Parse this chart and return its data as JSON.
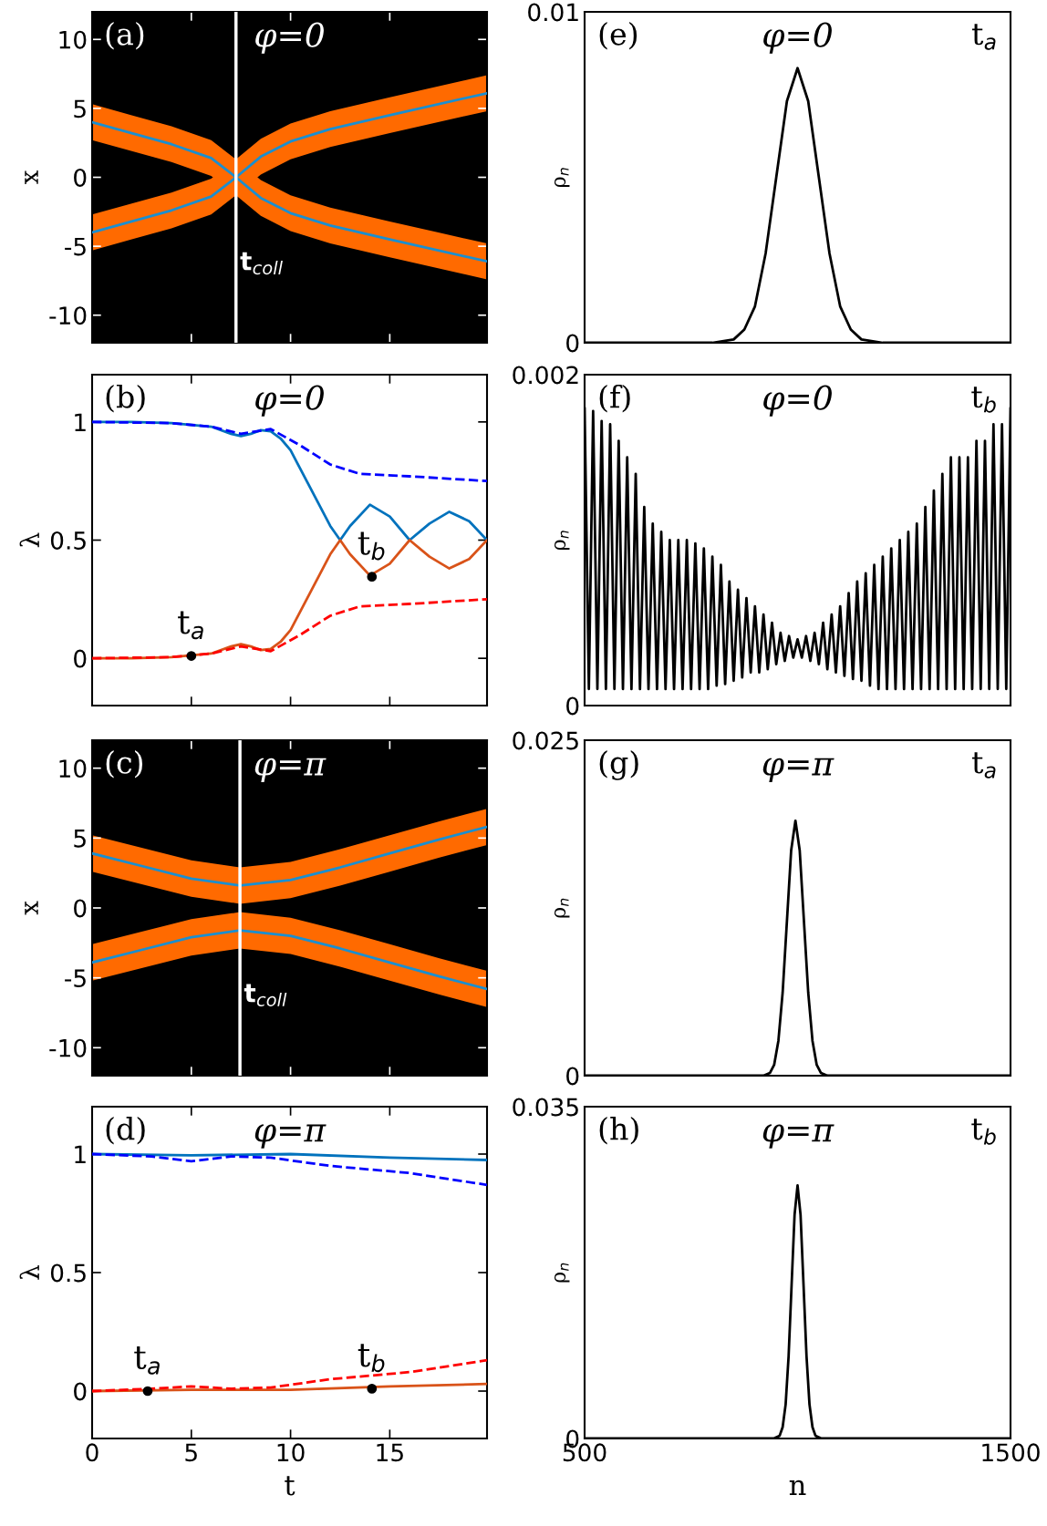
{
  "chart_data": [
    {
      "type": "line",
      "title": "φ=0",
      "ylabel": "x",
      "annotations": [
        "(a)"
      ],
      "xlim": [
        0,
        19.9
      ],
      "xticks": [
        0,
        5,
        10,
        15
      ],
      "ylim": [
        -12,
        12
      ],
      "yticks": [
        -10,
        -5,
        0,
        5,
        10
      ],
      "tick_labels": "y",
      "ref_lines": [
        {
          "axis": "x",
          "value": 7.25,
          "label": "t$_{coll}$",
          "color": "#ffffff"
        }
      ],
      "series": [
        {
          "color": "#1a8fd0",
          "x": [
            0,
            2,
            4,
            6,
            7.25,
            8.5,
            10,
            12,
            15,
            19.9
          ],
          "values": [
            4.0,
            3.2,
            2.4,
            1.4,
            0,
            -1.5,
            -2.6,
            -3.5,
            -4.5,
            -6.1
          ],
          "lower": [
            2.7,
            1.9,
            1.1,
            0.1,
            -1.3,
            -2.8,
            -3.9,
            -4.8,
            -5.8,
            -7.4
          ],
          "upper": [
            5.3,
            4.5,
            3.7,
            2.7,
            1.3,
            -0.2,
            -1.3,
            -2.2,
            -3.2,
            -4.8
          ]
        },
        {
          "color": "#1a8fd0",
          "x": [
            0,
            2,
            4,
            6,
            7.25,
            8.5,
            10,
            12,
            15,
            19.9
          ],
          "values": [
            -4.0,
            -3.2,
            -2.4,
            -1.4,
            0,
            1.5,
            2.6,
            3.5,
            4.5,
            6.1
          ],
          "lower": [
            -5.3,
            -4.5,
            -3.7,
            -2.7,
            -1.3,
            0.2,
            1.3,
            2.2,
            3.2,
            4.8
          ],
          "upper": [
            -2.7,
            -1.9,
            -1.1,
            -0.1,
            1.3,
            2.8,
            3.9,
            4.8,
            5.8,
            7.4
          ]
        }
      ]
    },
    {
      "type": "line",
      "title": "φ=0",
      "ylabel": "ρ$_{n}$",
      "annotations": [
        "(e)",
        "t$_{a}$"
      ],
      "xlim": [
        500,
        1500
      ],
      "xticks": [
        500,
        1500
      ],
      "ylim": [
        0,
        0.01
      ],
      "yticks": [
        0,
        0.01
      ],
      "tick_labels": "y",
      "series": [
        {
          "color": "#000000",
          "x": [
            500,
            800,
            850,
            875,
            900,
            925,
            950,
            975,
            1000,
            1025,
            1050,
            1075,
            1100,
            1125,
            1150,
            1200,
            1500
          ],
          "values": [
            0,
            0,
            0.0001,
            0.0004,
            0.0011,
            0.0027,
            0.005,
            0.0073,
            0.0083,
            0.0073,
            0.005,
            0.0027,
            0.0011,
            0.0004,
            0.0001,
            0,
            0
          ]
        }
      ]
    },
    {
      "type": "line",
      "title": "φ=0",
      "ylabel": "λ",
      "annotations": [
        "(b)",
        {
          "text": "t$_{a}$",
          "x": 5,
          "y": 0.01
        },
        {
          "text": "t$_{b}$",
          "x": 14.1,
          "y": 0.345
        }
      ],
      "xlim": [
        0,
        19.9
      ],
      "xticks": [
        0,
        5,
        10,
        15
      ],
      "ylim": [
        -0.2,
        1.2
      ],
      "yticks": [
        0,
        0.5,
        1
      ],
      "tick_labels": "y",
      "series": [
        {
          "color": "#0072bd",
          "x": [
            0,
            2,
            4,
            6,
            7,
            7.5,
            8,
            8.5,
            9,
            9.5,
            10,
            11,
            12,
            12.5,
            13,
            14,
            15,
            16,
            17,
            18,
            19,
            19.9
          ],
          "values": [
            1,
            1,
            0.995,
            0.98,
            0.95,
            0.94,
            0.95,
            0.965,
            0.96,
            0.93,
            0.88,
            0.72,
            0.56,
            0.5,
            0.56,
            0.65,
            0.6,
            0.5,
            0.57,
            0.62,
            0.58,
            0.5
          ]
        },
        {
          "color": "#d95319",
          "x": [
            0,
            2,
            4,
            6,
            7,
            7.5,
            8,
            8.5,
            9,
            9.5,
            10,
            11,
            12,
            12.5,
            13,
            14,
            15,
            16,
            17,
            18,
            19,
            19.9
          ],
          "values": [
            0,
            0,
            0.005,
            0.02,
            0.05,
            0.06,
            0.05,
            0.035,
            0.04,
            0.07,
            0.12,
            0.28,
            0.44,
            0.5,
            0.44,
            0.35,
            0.4,
            0.5,
            0.43,
            0.38,
            0.42,
            0.5
          ]
        },
        {
          "color": "#0000ff",
          "line_style": "dashed",
          "x": [
            0,
            4,
            6,
            7.5,
            9,
            10.5,
            12,
            13.5,
            16,
            19.9
          ],
          "values": [
            1,
            0.995,
            0.98,
            0.95,
            0.97,
            0.9,
            0.82,
            0.78,
            0.77,
            0.75
          ]
        },
        {
          "color": "#ff0000",
          "line_style": "dashed",
          "x": [
            0,
            4,
            6,
            7.5,
            9,
            10.5,
            12,
            13.5,
            16,
            19.9
          ],
          "values": [
            0,
            0.005,
            0.02,
            0.05,
            0.03,
            0.1,
            0.18,
            0.22,
            0.23,
            0.25
          ]
        },
        {
          "type": "scatter",
          "color": "#000000",
          "x": [
            5,
            14.1
          ],
          "values": [
            0.01,
            0.345
          ]
        }
      ]
    },
    {
      "type": "line",
      "title": "φ=0",
      "ylabel": "ρ$_{n}$",
      "annotations": [
        "(f)",
        "t$_{b}$"
      ],
      "xlim": [
        500,
        1500
      ],
      "xticks": [
        500,
        1500
      ],
      "ylim": [
        0,
        0.002
      ],
      "yticks": [
        0,
        0.002
      ],
      "tick_labels": "y",
      "series": [
        {
          "color": "#000000",
          "x": [
            500,
            510,
            520,
            530,
            540,
            550,
            560,
            570,
            580,
            590,
            600,
            610,
            620,
            630,
            640,
            650,
            660,
            670,
            680,
            690,
            700,
            710,
            720,
            730,
            740,
            750,
            760,
            770,
            780,
            790,
            800,
            810,
            820,
            830,
            840,
            850,
            860,
            870,
            880,
            890,
            900,
            910,
            920,
            930,
            940,
            950,
            960,
            970,
            980,
            990,
            1000,
            1010,
            1020,
            1030,
            1040,
            1050,
            1060,
            1070,
            1080,
            1090,
            1100,
            1110,
            1120,
            1130,
            1140,
            1150,
            1160,
            1170,
            1180,
            1190,
            1200,
            1210,
            1220,
            1230,
            1240,
            1250,
            1260,
            1270,
            1280,
            1290,
            1300,
            1310,
            1320,
            1330,
            1340,
            1350,
            1360,
            1370,
            1380,
            1390,
            1400,
            1410,
            1420,
            1430,
            1440,
            1450,
            1460,
            1470,
            1480,
            1490,
            1500
          ],
          "values": [
            0.0018,
            0.0001,
            0.00178,
            0.0001,
            0.00172,
            0.0001,
            0.0017,
            0.0001,
            0.0016,
            0.0001,
            0.0015,
            0.0001,
            0.0014,
            0.0001,
            0.0012,
            0.0001,
            0.0011,
            0.0001,
            0.00105,
            0.0001,
            0.001,
            0.0001,
            0.001,
            0.0001,
            0.001,
            0.0001,
            0.00098,
            0.0001,
            0.00095,
            0.0001,
            0.0009,
            0.00012,
            0.00085,
            0.00013,
            0.00075,
            0.00015,
            0.0007,
            0.00017,
            0.00065,
            0.0002,
            0.0006,
            0.0002,
            0.00055,
            0.00022,
            0.0005,
            0.00025,
            0.00044,
            0.00027,
            0.00042,
            0.00029,
            0.0004,
            0.00029,
            0.00042,
            0.00027,
            0.00044,
            0.00025,
            0.0005,
            0.00022,
            0.00055,
            0.0002,
            0.0006,
            0.00018,
            0.00068,
            0.00016,
            0.00075,
            0.00015,
            0.0008,
            0.00012,
            0.00085,
            0.0001,
            0.0009,
            0.0001,
            0.00095,
            0.0001,
            0.001,
            0.0001,
            0.00105,
            0.0001,
            0.0011,
            0.0001,
            0.0012,
            0.0001,
            0.0013,
            0.0001,
            0.0014,
            0.0001,
            0.0015,
            0.0001,
            0.0015,
            0.0001,
            0.0015,
            0.0001,
            0.0016,
            0.0001,
            0.0016,
            0.0001,
            0.0017,
            0.0001,
            0.0017,
            0.0001,
            0.0018
          ]
        }
      ]
    },
    {
      "type": "line",
      "title": "φ=π",
      "ylabel": "x",
      "annotations": [
        "(c)"
      ],
      "xlim": [
        0,
        19.9
      ],
      "xticks": [
        0,
        5,
        10,
        15
      ],
      "ylim": [
        -12,
        12
      ],
      "yticks": [
        -10,
        -5,
        0,
        5,
        10
      ],
      "tick_labels": "y",
      "ref_lines": [
        {
          "axis": "x",
          "value": 7.45,
          "label": "t$_{coll}$",
          "color": "#ffffff"
        }
      ],
      "series": [
        {
          "color": "#1a8fd0",
          "x": [
            0,
            2.5,
            5,
            7.45,
            10,
            12.5,
            15,
            17.5,
            19.9
          ],
          "values": [
            3.9,
            3.0,
            2.1,
            1.6,
            2.0,
            2.9,
            3.9,
            4.9,
            5.8
          ],
          "lower": [
            2.6,
            1.7,
            0.8,
            0.3,
            0.7,
            1.6,
            2.6,
            3.6,
            4.5
          ],
          "upper": [
            5.2,
            4.3,
            3.4,
            2.9,
            3.3,
            4.2,
            5.2,
            6.2,
            7.1
          ]
        },
        {
          "color": "#1a8fd0",
          "x": [
            0,
            2.5,
            5,
            7.45,
            10,
            12.5,
            15,
            17.5,
            19.9
          ],
          "values": [
            -3.9,
            -3.0,
            -2.1,
            -1.6,
            -2.0,
            -2.9,
            -3.9,
            -4.9,
            -5.8
          ],
          "lower": [
            -5.2,
            -4.3,
            -3.4,
            -2.9,
            -3.3,
            -4.2,
            -5.2,
            -6.2,
            -7.1
          ],
          "upper": [
            -2.6,
            -1.7,
            -0.8,
            -0.3,
            -0.7,
            -1.6,
            -2.6,
            -3.6,
            -4.5
          ]
        }
      ]
    },
    {
      "type": "line",
      "title": "φ=π",
      "ylabel": "ρ$_{n}$",
      "annotations": [
        "(g)",
        "t$_{a}$"
      ],
      "xlim": [
        500,
        1500
      ],
      "xticks": [
        500,
        1500
      ],
      "ylim": [
        0,
        0.025
      ],
      "yticks": [
        0,
        0.025
      ],
      "tick_labels": "y",
      "series": [
        {
          "color": "#000000",
          "x": [
            500,
            920,
            935,
            945,
            955,
            965,
            975,
            985,
            995,
            1005,
            1015,
            1025,
            1035,
            1045,
            1055,
            1070,
            1500
          ],
          "values": [
            0,
            0,
            0.0002,
            0.0008,
            0.0026,
            0.0062,
            0.0115,
            0.0168,
            0.019,
            0.0168,
            0.0115,
            0.0062,
            0.0026,
            0.0008,
            0.0002,
            0,
            0
          ]
        }
      ]
    },
    {
      "type": "line",
      "title": "φ=π",
      "xlabel": "t",
      "ylabel": "λ",
      "annotations": [
        "(d)",
        {
          "text": "t$_{a}$",
          "x": 2.8,
          "y": 0
        },
        {
          "text": "t$_{b}$",
          "x": 14.1,
          "y": 0.01
        }
      ],
      "xlim": [
        0,
        19.9
      ],
      "xticks": [
        0,
        5,
        10,
        15
      ],
      "ylim": [
        -0.2,
        1.2
      ],
      "yticks": [
        0,
        0.5,
        1
      ],
      "series": [
        {
          "color": "#0072bd",
          "x": [
            0,
            5,
            10,
            15,
            19.9
          ],
          "values": [
            1,
            0.995,
            1.0,
            0.985,
            0.975
          ]
        },
        {
          "color": "#d95319",
          "x": [
            0,
            5,
            10,
            15,
            19.9
          ],
          "values": [
            0,
            0.005,
            0.005,
            0.02,
            0.03
          ]
        },
        {
          "color": "#0000ff",
          "line_style": "dashed",
          "x": [
            0,
            3,
            5,
            7,
            9,
            12,
            16,
            19.9
          ],
          "values": [
            1,
            0.99,
            0.97,
            0.99,
            0.985,
            0.95,
            0.92,
            0.87
          ]
        },
        {
          "color": "#ff0000",
          "line_style": "dashed",
          "x": [
            0,
            3,
            5,
            7,
            9,
            12,
            16,
            19.9
          ],
          "values": [
            0,
            0.01,
            0.02,
            0.01,
            0.015,
            0.05,
            0.08,
            0.13
          ]
        },
        {
          "type": "scatter",
          "color": "#000000",
          "x": [
            2.8,
            14.1
          ],
          "values": [
            0,
            0.01
          ]
        }
      ]
    },
    {
      "type": "line",
      "title": "φ=π",
      "xlabel": "n",
      "ylabel": "ρ$_{n}$",
      "annotations": [
        "(h)",
        "t$_{b}$"
      ],
      "xlim": [
        500,
        1500
      ],
      "xticks": [
        500,
        1500
      ],
      "ylim": [
        0,
        0.035
      ],
      "yticks": [
        0,
        0.035
      ],
      "series": [
        {
          "color": "#000000",
          "x": [
            500,
            944,
            958,
            965,
            972,
            979,
            986,
            993,
            1000,
            1007,
            1014,
            1021,
            1028,
            1035,
            1042,
            1056,
            1500
          ],
          "values": [
            0,
            0,
            0.0003,
            0.0012,
            0.0036,
            0.0087,
            0.0162,
            0.0236,
            0.0267,
            0.0236,
            0.0162,
            0.0087,
            0.0036,
            0.0012,
            0.0003,
            0,
            0
          ]
        }
      ]
    }
  ]
}
